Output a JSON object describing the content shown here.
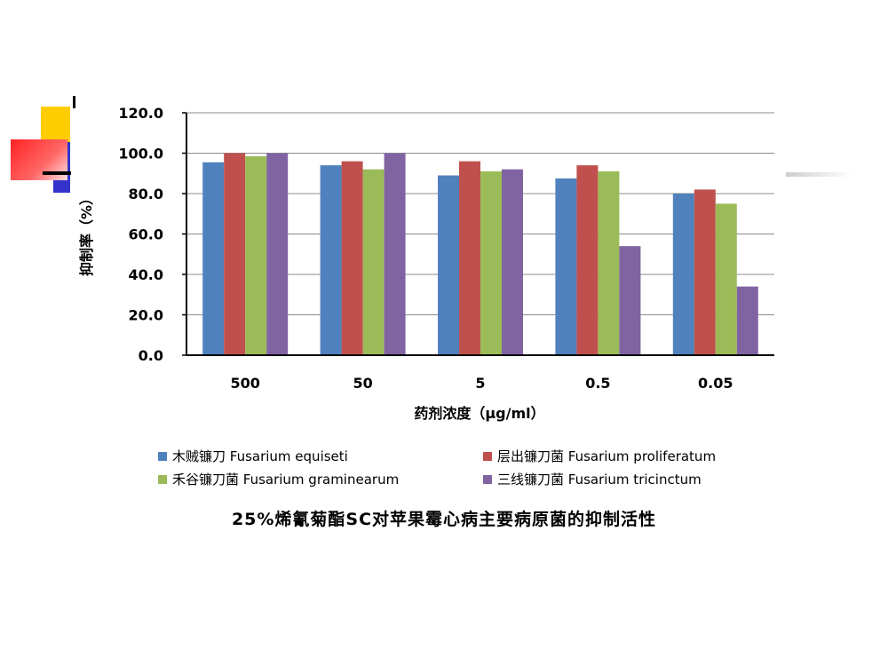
{
  "chart_data": {
    "type": "bar",
    "categories": [
      "500",
      "50",
      "5",
      "0.5",
      "0.05"
    ],
    "series": [
      {
        "name": "木贼镰刀 Fusarium equiseti",
        "color": "#4F81BD",
        "values": [
          95.5,
          94.0,
          89.0,
          87.5,
          80.0
        ]
      },
      {
        "name": "层出镰刀菌 Fusarium proliferatum",
        "color": "#C0504D",
        "values": [
          100.0,
          96.0,
          96.0,
          94.0,
          82.0
        ]
      },
      {
        "name": "禾谷镰刀菌 Fusarium graminearum",
        "color": "#9BBB59",
        "values": [
          98.5,
          92.0,
          91.0,
          91.0,
          75.0
        ]
      },
      {
        "name": "三线镰刀菌 Fusarium tricinctum",
        "color": "#8064A2",
        "values": [
          100.0,
          100.0,
          92.0,
          54.0,
          34.0
        ]
      }
    ],
    "title": "25%烯氰菊酯SC对苹果霉心病主要病原菌的抑制活性",
    "xlabel": "药剂浓度（μg/ml）",
    "ylabel": "抑制率（%）",
    "yticks": [
      "0.0",
      "20.0",
      "40.0",
      "60.0",
      "80.0",
      "100.0",
      "120.0"
    ],
    "ylim": [
      0,
      120
    ],
    "grid": true,
    "legend_position": "bottom"
  },
  "colors": {
    "deco_yellow": "#FFCC00",
    "deco_blue": "#3333CC",
    "deco_red": "#FF3333"
  }
}
